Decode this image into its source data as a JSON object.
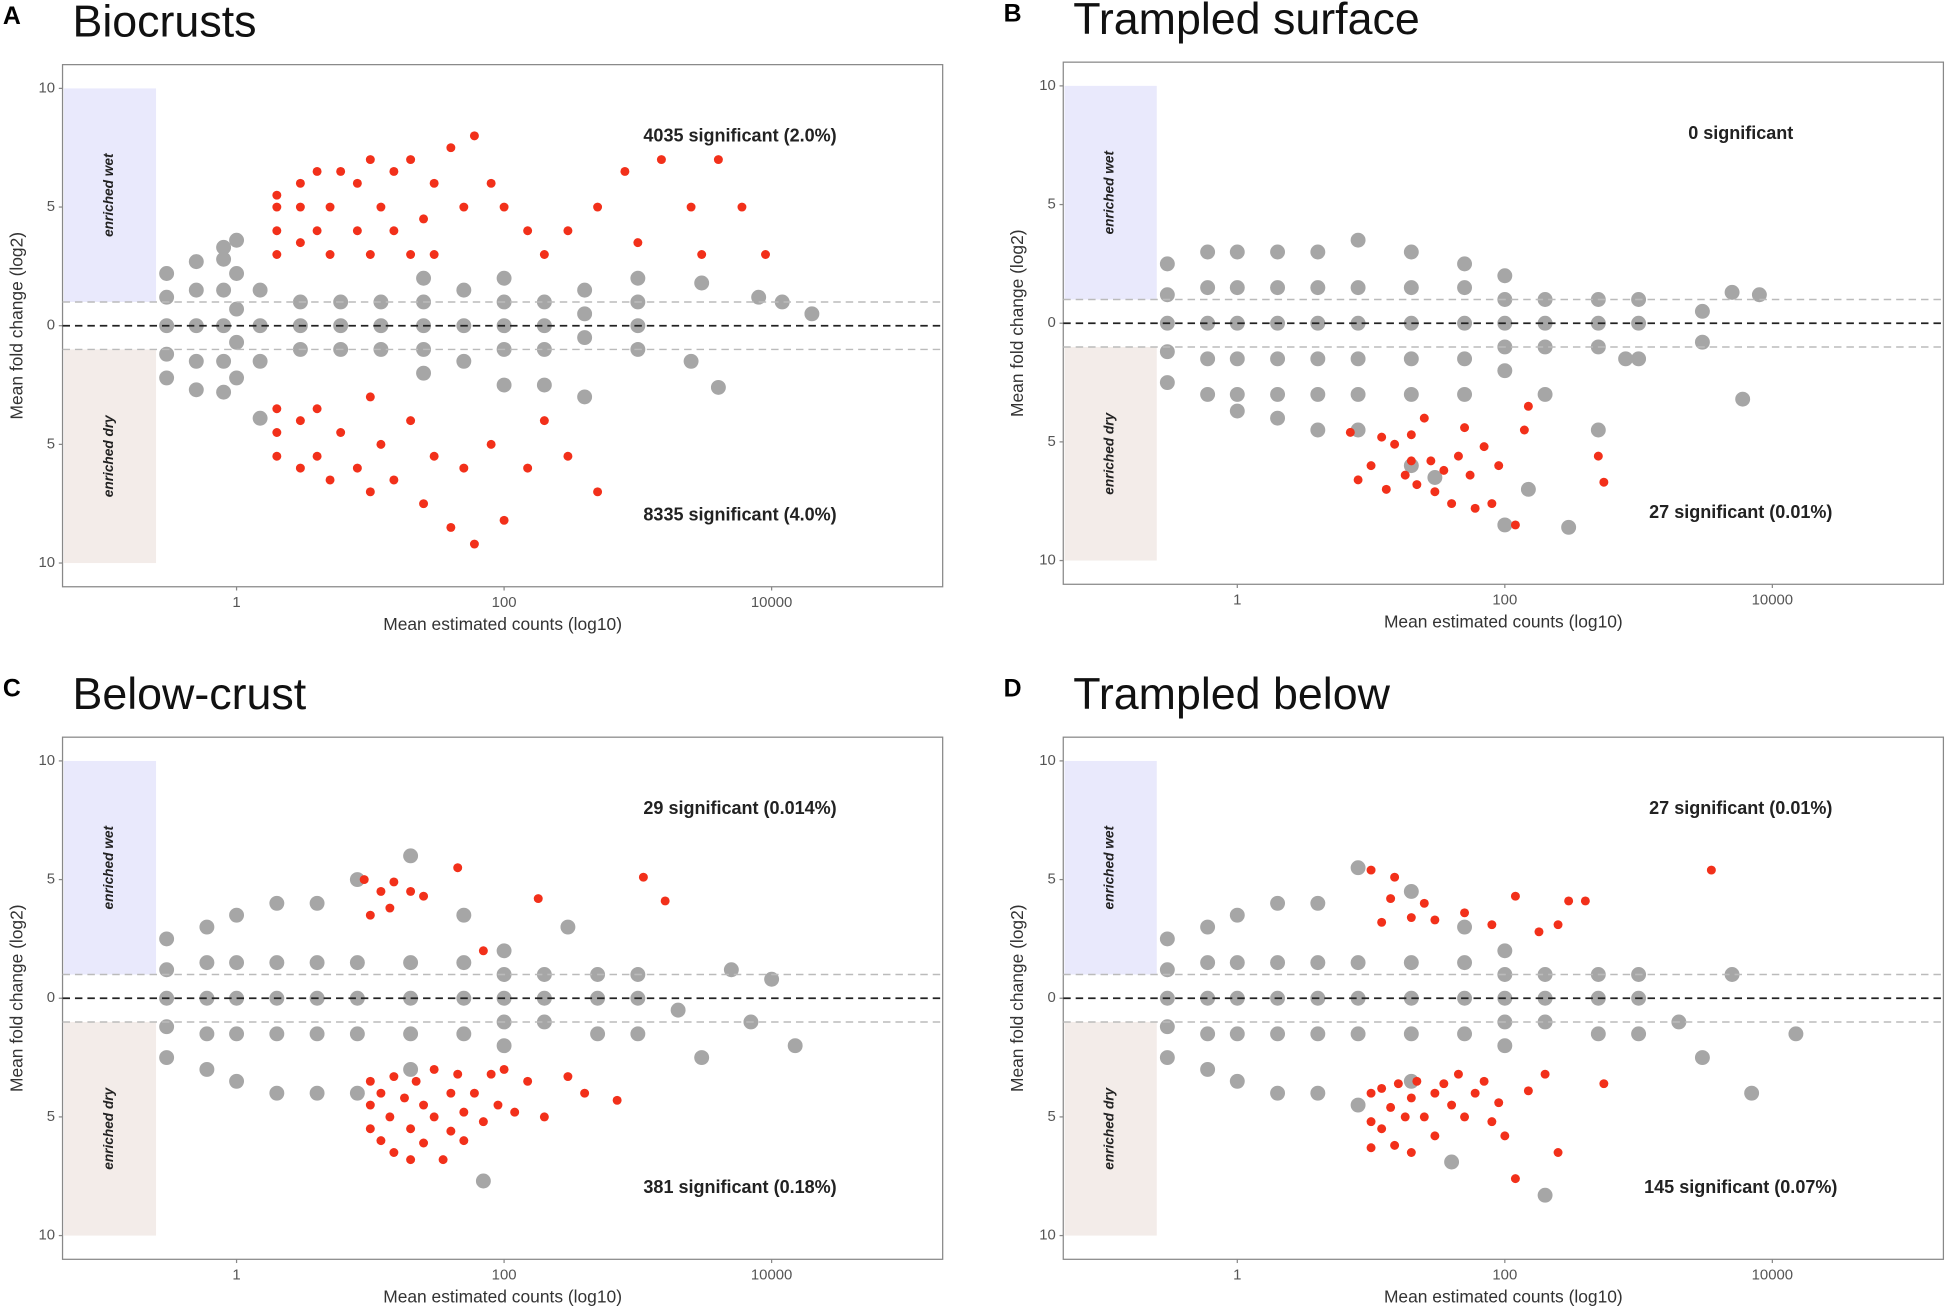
{
  "chart_data": [
    {
      "type": "scatter",
      "label": "A",
      "title": "Biocrusts",
      "xlabel": "Mean estimated counts (log10)",
      "ylabel": "Mean fold change (log2)",
      "xscale": "log",
      "xlim": [
        0.05,
        190000
      ],
      "xticks": [
        1,
        100,
        10000
      ],
      "ylim": [
        -11,
        11
      ],
      "yticks": [
        {
          "value": -10,
          "label": "10"
        },
        {
          "value": -5,
          "label": "5"
        },
        0,
        5,
        10
      ],
      "hlines": [
        -1,
        0,
        1
      ],
      "band_xmax": 0.25,
      "bands": [
        {
          "label": "enriched wet",
          "y": [
            1,
            10
          ],
          "color": "#e9e9fc"
        },
        {
          "label": "enriched dry",
          "y": [
            -10,
            -1
          ],
          "color": "#f3ece9"
        }
      ],
      "annotations": [
        "4035 significant (2.0%)",
        "8335 significant (4.0%)"
      ],
      "series": [
        {
          "color": "#a6a6a6",
          "x": [
            0.3,
            0.3,
            0.3,
            0.3,
            0.3,
            0.5,
            0.5,
            0.5,
            0.5,
            0.5,
            0.8,
            0.8,
            0.8,
            0.8,
            0.8,
            0.8,
            1,
            1,
            1,
            1,
            1,
            1.5,
            1.5,
            1.5,
            1.5,
            3,
            3,
            3,
            6,
            6,
            6,
            12,
            12,
            12,
            25,
            25,
            25,
            25,
            25,
            50,
            50,
            50,
            100,
            100,
            100,
            100,
            100,
            200,
            200,
            200,
            200,
            400,
            400,
            400,
            400,
            1000,
            1000,
            1000,
            1000,
            2500,
            3000,
            4000,
            8000,
            12000,
            20000
          ],
          "values": [
            0,
            1.2,
            -1.2,
            2.2,
            -2.2,
            0,
            1.5,
            -1.5,
            2.7,
            -2.7,
            0,
            1.5,
            -1.5,
            2.8,
            -2.8,
            3.3,
            0.7,
            -0.7,
            2.2,
            -2.2,
            3.6,
            0,
            1.5,
            -1.5,
            -3.9,
            0,
            1,
            -1,
            0,
            1,
            -1,
            0,
            1,
            -1,
            0,
            1,
            -1,
            2,
            -2,
            0,
            1.5,
            -1.5,
            0,
            1,
            -1,
            2,
            -2.5,
            0,
            1,
            -1,
            -2.5,
            0.5,
            -0.5,
            1.5,
            -3,
            0,
            1,
            -1,
            2,
            -1.5,
            1.8,
            -2.6,
            1.2,
            1,
            0.5
          ]
        },
        {
          "color": "#f2301a",
          "x": [
            2,
            2,
            2,
            2,
            3,
            3,
            3,
            4,
            4,
            5,
            5,
            6,
            8,
            8,
            10,
            10,
            12,
            15,
            15,
            20,
            20,
            25,
            30,
            30,
            40,
            50,
            60,
            80,
            100,
            150,
            200,
            300,
            500,
            800,
            1000,
            1500,
            2500,
            3000,
            4000,
            6000,
            9000,
            2,
            2,
            2,
            3,
            3,
            4,
            4,
            5,
            6,
            8,
            10,
            10,
            12,
            15,
            20,
            25,
            30,
            40,
            50,
            60,
            80,
            100,
            150,
            200,
            300,
            500
          ],
          "values": [
            3,
            4,
            5,
            5.5,
            3.5,
            5,
            6,
            4,
            6.5,
            3,
            5,
            6.5,
            4,
            6,
            3,
            7,
            5,
            4,
            6.5,
            3,
            7,
            4.5,
            3,
            6,
            7.5,
            5,
            8,
            6,
            5,
            4,
            3,
            4,
            5,
            6.5,
            3.5,
            7,
            5,
            3,
            7,
            5,
            3,
            -3.5,
            -4.5,
            -5.5,
            -4,
            -6,
            -3.5,
            -5.5,
            -6.5,
            -4.5,
            -6,
            -3,
            -7,
            -5,
            -6.5,
            -4,
            -7.5,
            -5.5,
            -8.5,
            -6,
            -9.2,
            -5,
            -8.2,
            -6,
            -4,
            -5.5,
            -7
          ]
        }
      ]
    },
    {
      "type": "scatter",
      "label": "B",
      "title": "Trampled surface",
      "xlabel": "Mean estimated counts (log10)",
      "ylabel": "Mean fold change (log2)",
      "xscale": "log",
      "xlim": [
        0.05,
        190000
      ],
      "xticks": [
        1,
        100,
        10000
      ],
      "ylim": [
        -11,
        11
      ],
      "yticks": [
        {
          "value": -10,
          "label": "10"
        },
        {
          "value": -5,
          "label": "5"
        },
        0,
        5,
        10
      ],
      "hlines": [
        -1,
        0,
        1
      ],
      "band_xmax": 0.25,
      "bands": [
        {
          "label": "enriched wet",
          "y": [
            1,
            10
          ],
          "color": "#e9e9fc"
        },
        {
          "label": "enriched dry",
          "y": [
            -10,
            -1
          ],
          "color": "#f3ece9"
        }
      ],
      "annotations": [
        "0 significant",
        "27 significant (0.01%)"
      ],
      "series": [
        {
          "color": "#a6a6a6",
          "x": [
            0.3,
            0.3,
            0.3,
            0.3,
            0.3,
            0.6,
            0.6,
            0.6,
            0.6,
            0.6,
            1,
            1,
            1,
            1,
            1,
            1,
            2,
            2,
            2,
            2,
            2,
            2,
            4,
            4,
            4,
            4,
            4,
            4,
            8,
            8,
            8,
            8,
            8,
            8,
            20,
            20,
            20,
            20,
            20,
            20,
            50,
            50,
            50,
            50,
            50,
            100,
            100,
            100,
            100,
            100,
            100,
            200,
            200,
            200,
            200,
            500,
            500,
            500,
            500,
            1000,
            1000,
            1000,
            3000,
            3000,
            5000,
            6000,
            8000,
            300,
            800,
            150,
            30
          ],
          "values": [
            0,
            1.2,
            -1.2,
            2.5,
            -2.5,
            0,
            1.5,
            -1.5,
            3,
            -3,
            0,
            1.5,
            -1.5,
            3,
            -3,
            -3.7,
            0,
            1.5,
            -1.5,
            3,
            -3,
            -4,
            0,
            1.5,
            -1.5,
            3,
            -3,
            -4.5,
            0,
            1.5,
            -1.5,
            3.5,
            -3,
            -4.5,
            0,
            1.5,
            -1.5,
            3,
            -3,
            -6,
            0,
            1.5,
            -1.5,
            2.5,
            -3,
            0,
            1,
            -1,
            2,
            -2,
            -8.5,
            0,
            1,
            -1,
            -3,
            0,
            1,
            -1,
            -4.5,
            0,
            1,
            -1.5,
            0.5,
            -0.8,
            1.3,
            -3.2,
            1.2,
            -8.6,
            -1.5,
            -7,
            -6.5
          ]
        },
        {
          "color": "#f2301a",
          "x": [
            7,
            8,
            10,
            12,
            13,
            15,
            18,
            20,
            20,
            22,
            25,
            28,
            30,
            35,
            40,
            45,
            50,
            55,
            60,
            70,
            80,
            90,
            120,
            140,
            150,
            500,
            550
          ],
          "values": [
            -4.6,
            -6.6,
            -6,
            -4.8,
            -7,
            -5.1,
            -6.4,
            -4.7,
            -5.8,
            -6.8,
            -4,
            -5.8,
            -7.1,
            -6.2,
            -7.6,
            -5.6,
            -4.4,
            -6.4,
            -7.8,
            -5.2,
            -7.6,
            -6,
            -8.5,
            -4.5,
            -3.5,
            -5.6,
            -6.7
          ]
        }
      ]
    },
    {
      "type": "scatter",
      "label": "C",
      "title": "Below-crust",
      "xlabel": "Mean estimated counts (log10)",
      "ylabel": "Mean fold change (log2)",
      "xscale": "log",
      "xlim": [
        0.05,
        190000
      ],
      "xticks": [
        1,
        100,
        10000
      ],
      "ylim": [
        -11,
        11
      ],
      "yticks": [
        {
          "value": -10,
          "label": "10"
        },
        {
          "value": -5,
          "label": "5"
        },
        0,
        5,
        10
      ],
      "hlines": [
        -1,
        0,
        1
      ],
      "band_xmax": 0.25,
      "bands": [
        {
          "label": "enriched wet",
          "y": [
            1,
            10
          ],
          "color": "#e9e9fc"
        },
        {
          "label": "enriched dry",
          "y": [
            -10,
            -1
          ],
          "color": "#f3ece9"
        }
      ],
      "annotations": [
        "29 significant (0.014%)",
        "381 significant (0.18%)"
      ],
      "series": [
        {
          "color": "#a6a6a6",
          "x": [
            0.3,
            0.3,
            0.3,
            0.3,
            0.3,
            0.6,
            0.6,
            0.6,
            0.6,
            0.6,
            1,
            1,
            1,
            1,
            1,
            2,
            2,
            2,
            2,
            2,
            4,
            4,
            4,
            4,
            4,
            8,
            8,
            8,
            8,
            8,
            20,
            20,
            20,
            20,
            20,
            50,
            50,
            50,
            50,
            100,
            100,
            100,
            100,
            100,
            200,
            200,
            200,
            300,
            500,
            500,
            500,
            1000,
            1000,
            1000,
            2000,
            3000,
            5000,
            10000,
            15000,
            7000,
            70
          ],
          "values": [
            0,
            1.2,
            -1.2,
            2.5,
            -2.5,
            0,
            1.5,
            -1.5,
            3,
            -3,
            0,
            1.5,
            -1.5,
            3.5,
            -3.5,
            0,
            1.5,
            -1.5,
            4,
            -4,
            0,
            1.5,
            -1.5,
            4,
            -4,
            0,
            1.5,
            -1.5,
            5,
            -4,
            0,
            1.5,
            -1.5,
            6,
            -3,
            0,
            1.5,
            -1.5,
            3.5,
            0,
            1,
            -1,
            2,
            -2,
            0,
            1,
            -1,
            3,
            0,
            1,
            -1.5,
            0,
            1,
            -1.5,
            -0.5,
            -2.5,
            1.2,
            0.8,
            -2,
            -1,
            -7.7
          ]
        },
        {
          "color": "#f2301a",
          "x": [
            9,
            10,
            12,
            14,
            15,
            20,
            25,
            45,
            70,
            180,
            1100,
            1600,
            10,
            10,
            10,
            12,
            12,
            14,
            15,
            15,
            18,
            20,
            20,
            22,
            25,
            25,
            30,
            30,
            35,
            40,
            40,
            45,
            50,
            50,
            60,
            70,
            80,
            90,
            100,
            120,
            150,
            200,
            300,
            400,
            700
          ],
          "values": [
            5,
            3.5,
            4.5,
            3.8,
            4.9,
            4.5,
            4.3,
            5.5,
            2,
            4.2,
            5.1,
            4.1,
            -3.5,
            -4.5,
            -5.5,
            -4,
            -6,
            -5,
            -3.3,
            -6.5,
            -4.2,
            -5.5,
            -6.8,
            -3.5,
            -4.5,
            -6.1,
            -3,
            -5,
            -6.8,
            -4,
            -5.6,
            -3.2,
            -4.8,
            -6,
            -4,
            -5.2,
            -3.2,
            -4.5,
            -3,
            -4.8,
            -3.5,
            -5,
            -3.3,
            -4,
            -4.3
          ]
        }
      ]
    },
    {
      "type": "scatter",
      "label": "D",
      "title": "Trampled below",
      "xlabel": "Mean estimated counts (log10)",
      "ylabel": "Mean fold change (log2)",
      "xscale": "log",
      "xlim": [
        0.05,
        190000
      ],
      "xticks": [
        1,
        100,
        10000
      ],
      "ylim": [
        -11,
        11
      ],
      "yticks": [
        {
          "value": -10,
          "label": "10"
        },
        {
          "value": -5,
          "label": "5"
        },
        0,
        5,
        10
      ],
      "hlines": [
        -1,
        0,
        1
      ],
      "band_xmax": 0.25,
      "bands": [
        {
          "label": "enriched wet",
          "y": [
            1,
            10
          ],
          "color": "#e9e9fc"
        },
        {
          "label": "enriched dry",
          "y": [
            -10,
            -1
          ],
          "color": "#f3ece9"
        }
      ],
      "annotations": [
        "27 significant (0.01%)",
        "145 significant (0.07%)"
      ],
      "series": [
        {
          "color": "#a6a6a6",
          "x": [
            0.3,
            0.3,
            0.3,
            0.3,
            0.3,
            0.6,
            0.6,
            0.6,
            0.6,
            0.6,
            1,
            1,
            1,
            1,
            1,
            2,
            2,
            2,
            2,
            2,
            4,
            4,
            4,
            4,
            4,
            8,
            8,
            8,
            8,
            8,
            20,
            20,
            20,
            20,
            20,
            50,
            50,
            50,
            50,
            100,
            100,
            100,
            100,
            100,
            200,
            200,
            200,
            500,
            500,
            500,
            1000,
            1000,
            1000,
            2000,
            3000,
            5000,
            7000,
            15000,
            200,
            40
          ],
          "values": [
            0,
            1.2,
            -1.2,
            2.5,
            -2.5,
            0,
            1.5,
            -1.5,
            3,
            -3,
            0,
            1.5,
            -1.5,
            3.5,
            -3.5,
            0,
            1.5,
            -1.5,
            4,
            -4,
            0,
            1.5,
            -1.5,
            4,
            -4,
            0,
            1.5,
            -1.5,
            5.5,
            -4.5,
            0,
            1.5,
            -1.5,
            4.5,
            -3.5,
            0,
            1.5,
            -1.5,
            3,
            0,
            1,
            -1,
            2,
            -2,
            0,
            1,
            -1,
            0,
            1,
            -1.5,
            0,
            1,
            -1.5,
            -1,
            -2.5,
            1,
            -4,
            -1.5,
            -8.3,
            -6.9
          ]
        },
        {
          "color": "#f2301a",
          "x": [
            10,
            12,
            14,
            15,
            20,
            25,
            30,
            50,
            80,
            120,
            180,
            250,
            300,
            400,
            3500,
            10,
            10,
            10,
            12,
            12,
            14,
            15,
            16,
            18,
            20,
            20,
            22,
            25,
            30,
            30,
            35,
            40,
            45,
            50,
            60,
            70,
            80,
            90,
            100,
            120,
            150,
            200,
            250,
            550
          ],
          "values": [
            5.4,
            3.2,
            4.2,
            5.1,
            3.4,
            4,
            3.3,
            3.6,
            3.1,
            4.3,
            2.8,
            3.1,
            4.1,
            4.1,
            5.4,
            -4,
            -5.2,
            -6.3,
            -3.8,
            -5.5,
            -4.6,
            -6.2,
            -3.6,
            -5,
            -4.2,
            -6.5,
            -3.5,
            -5,
            -4,
            -5.8,
            -3.6,
            -4.5,
            -3.2,
            -5,
            -4,
            -3.5,
            -5.2,
            -4.4,
            -5.8,
            -7.6,
            -3.9,
            -3.2,
            -6.5,
            -3.6
          ]
        }
      ]
    }
  ]
}
